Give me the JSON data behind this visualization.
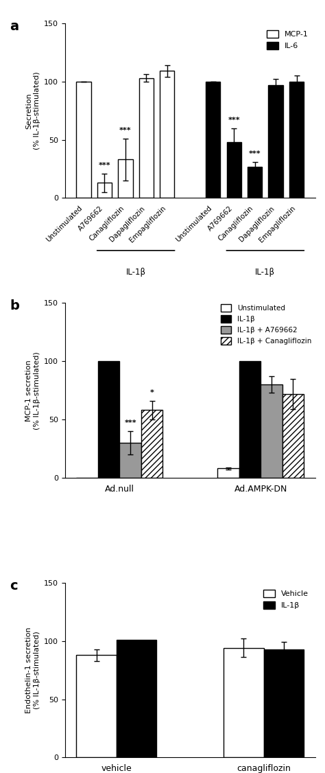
{
  "panel_a": {
    "ylabel": "Secretion\n(% IL-1β-stimulated)",
    "ylim": [
      0,
      150
    ],
    "yticks": [
      0,
      50,
      100,
      150
    ],
    "mcp1_values": [
      100,
      13,
      33,
      103,
      109
    ],
    "mcp1_errors": [
      0,
      8,
      18,
      3,
      5
    ],
    "il6_values": [
      100,
      48,
      27,
      97,
      100
    ],
    "il6_errors": [
      0,
      12,
      4,
      5,
      5
    ],
    "xticklabels": [
      "Unstimulated",
      "A769662",
      "Canagliflozin",
      "Dapagliflozin",
      "Empagliflozin"
    ],
    "significance_mcp1": [
      "",
      "***",
      "***",
      "",
      ""
    ],
    "significance_il6": [
      "",
      "***",
      "***",
      "",
      ""
    ],
    "legend_labels": [
      "MCP-1",
      "IL-6"
    ],
    "legend_colors": [
      "white",
      "black"
    ],
    "group_label": "IL-1β"
  },
  "panel_b": {
    "ylabel": "MCP-1 secretion\n(% IL-1β-stimulated)",
    "ylim": [
      0,
      150
    ],
    "yticks": [
      0,
      50,
      100,
      150
    ],
    "groups": [
      "Ad.null",
      "Ad.AMPK-DN"
    ],
    "series_labels": [
      "Unstimulated",
      "IL-1β",
      "IL-1β + A769662",
      "IL-1β + Canagliflozin"
    ],
    "series_colors": [
      "white",
      "black",
      "#999999",
      "white"
    ],
    "series_hatches": [
      "",
      "",
      "",
      "////"
    ],
    "adnull_values": [
      0,
      100,
      30,
      58
    ],
    "adnull_errors": [
      0,
      0,
      10,
      8
    ],
    "adampk_values": [
      8,
      100,
      80,
      72
    ],
    "adampk_errors": [
      1,
      0,
      7,
      13
    ],
    "significance_adnull": [
      "",
      "",
      "***",
      "*"
    ],
    "significance_adampk": [
      "",
      "",
      "",
      ""
    ]
  },
  "panel_c": {
    "ylabel": "Endothelin-1 secretion\n(% IL-1β-stimulated)",
    "ylim": [
      0,
      150
    ],
    "yticks": [
      0,
      50,
      100,
      150
    ],
    "groups": [
      "vehicle",
      "canagliflozin"
    ],
    "series_labels": [
      "Vehicle",
      "IL-1β"
    ],
    "series_colors": [
      "white",
      "black"
    ],
    "vehicle_values": [
      88,
      101
    ],
    "vehicle_errors": [
      5,
      0
    ],
    "cana_values": [
      94,
      93
    ],
    "cana_errors": [
      8,
      6
    ]
  },
  "panel_labels": [
    "a",
    "b",
    "c"
  ],
  "bar_edgecolor": "black",
  "bar_linewidth": 1.0
}
